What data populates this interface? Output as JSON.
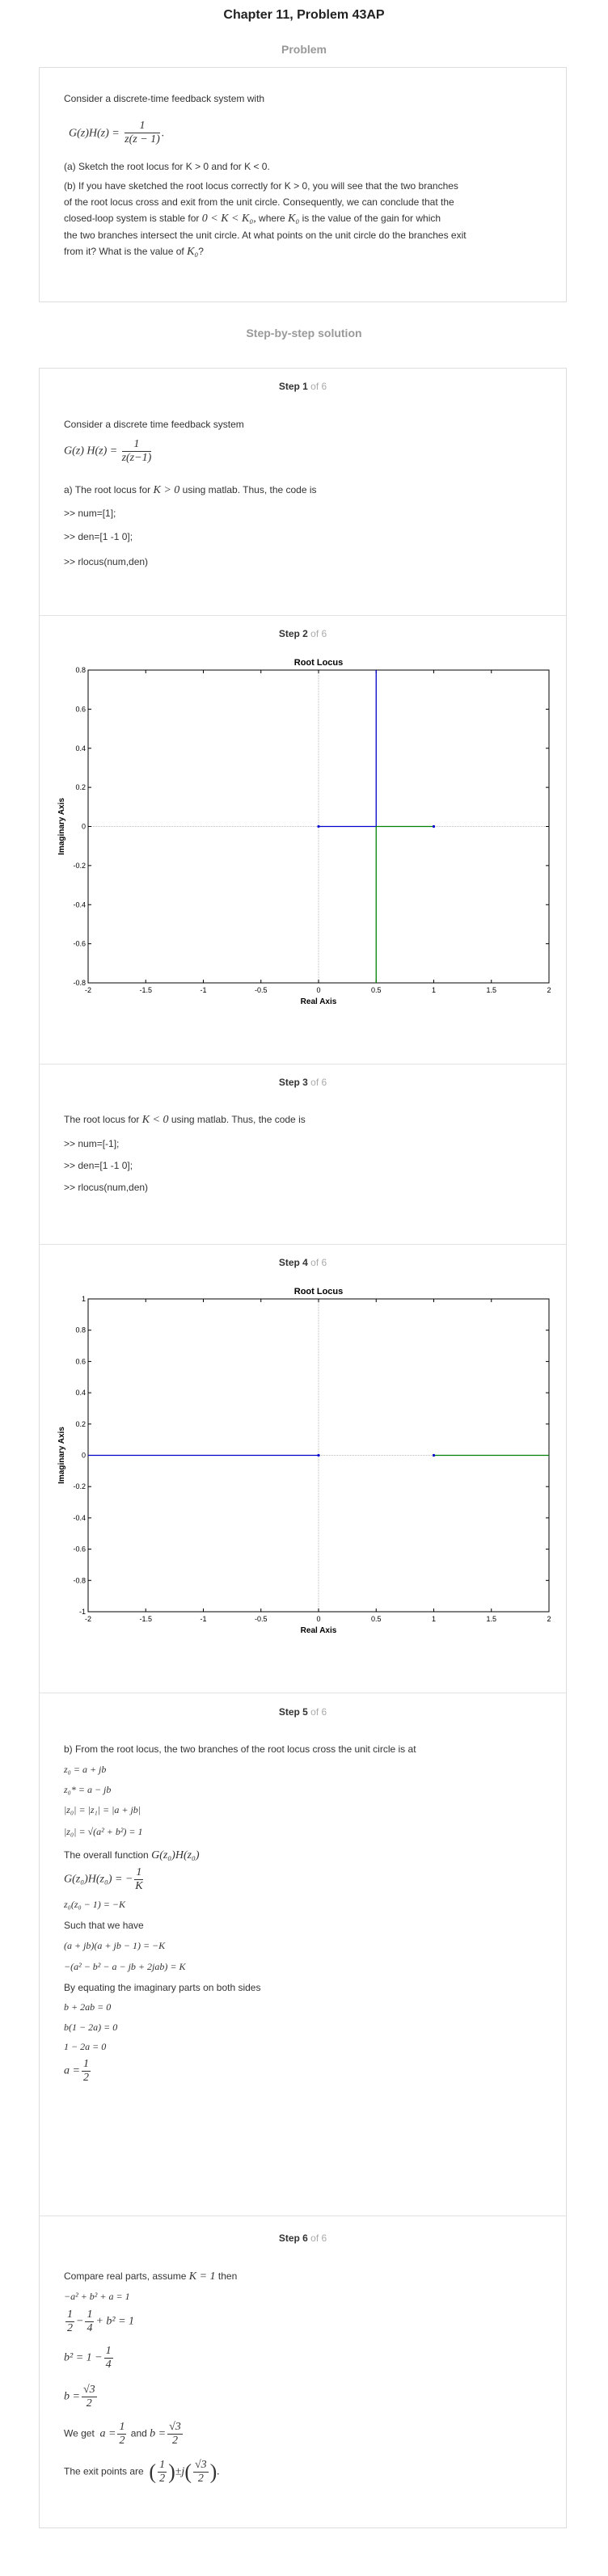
{
  "header": {
    "title": "Chapter 11, Problem 43AP",
    "problem_label": "Problem"
  },
  "problem": {
    "intro": "Consider a discrete-time feedback system with",
    "eq_lhs": "G(z)H(z) =",
    "eq_num": "1",
    "eq_den": "z(z − 1)",
    "part_a": "(a) Sketch the root locus for K > 0 and for K < 0.",
    "part_b_1": "(b) If you have sketched the root locus correctly for K > 0, you will see that the two branches",
    "part_b_2": "of the root locus cross and exit from the unit circle. Consequently, we can conclude that the",
    "part_b_3a": "closed-loop system is stable for",
    "part_b_3m": "0 < K < K₀,",
    "part_b_3b": "where",
    "part_b_3m2": "K₀",
    "part_b_3c": "is the value of the gain for which",
    "part_b_4": "the two branches intersect the unit circle. At what points on the unit circle do the branches exit",
    "part_b_5a": "from it? What is the value of",
    "part_b_5m": "K₀",
    "part_b_5b": "?"
  },
  "solution_title": "Step-by-step solution",
  "steps": [
    {
      "label": "Step 1",
      "of": "of 6"
    },
    {
      "label": "Step 2",
      "of": "of 6"
    },
    {
      "label": "Step 3",
      "of": "of 6"
    },
    {
      "label": "Step 4",
      "of": "of 6"
    },
    {
      "label": "Step 5",
      "of": "of 6"
    },
    {
      "label": "Step 6",
      "of": "of 6"
    }
  ],
  "step1": {
    "intro": "Consider a discrete time feedback system",
    "eq_lhs": "G(z) H(z) =",
    "eq_num": "1",
    "eq_den": "z(z−1)",
    "text_a": "a) The root locus for",
    "text_m": "K > 0",
    "text_b": "using matlab. Thus, the code is",
    "code": [
      ">> num=[1];",
      ">> den=[1 -1 0];",
      ">> rlocus(num,den)"
    ]
  },
  "step3": {
    "text_a": "The root locus for",
    "text_m": "K < 0",
    "text_b": "using matlab. Thus, the code is",
    "code": [
      ">> num=[-1];",
      ">> den=[1 -1 0];",
      ">> rlocus(num,den)"
    ]
  },
  "step5": {
    "intro": "b) From the root locus, the two branches of the root locus cross the unit circle is at",
    "m1": "z₀ = a + jb",
    "m2": "z₀* = a − jb",
    "m3": "|z₀| = |z₁| = |a + jb|",
    "m4": "|z₀| = √(a² + b²) = 1",
    "overall_a": "The overall function",
    "overall_m": "G(z₀)H(z₀)",
    "m5_lhs": "G(z₀)H(z₀) = −",
    "m5_num": "1",
    "m5_den": "K",
    "m6": "z₀(z₀ − 1) = −K",
    "such": "Such that we have",
    "m7": "(a + jb)(a + jb − 1) = −K",
    "m8": "−(a² − b² − a − jb + 2jab) = K",
    "equating": "By equating the imaginary parts on both sides",
    "m9": "b + 2ab = 0",
    "m10": "b(1 − 2a) = 0",
    "m11": "1 − 2a = 0",
    "m12_lhs": "a =",
    "m12_num": "1",
    "m12_den": "2"
  },
  "step6": {
    "compare_a": "Compare real parts, assume",
    "compare_m": "K = 1",
    "compare_b": "then",
    "m1": "−a² + b² + a = 1",
    "m2_a_num": "1",
    "m2_a_den": "2",
    "m2_b_num": "1",
    "m2_b_den": "4",
    "m2_rest": "+ b² = 1",
    "m3_lhs": "b² = 1 −",
    "m3_num": "1",
    "m3_den": "4",
    "m4_lhs": "b =",
    "m4_num": "√3",
    "m4_den": "2",
    "weget_a": "We get",
    "weget_m1": "a =",
    "weget_and": "and",
    "weget_m2": "b =",
    "exit_a": "The exit points are",
    "exit_pm": "±",
    "exit_j": "j"
  },
  "chart_data": [
    {
      "type": "line",
      "title": "Root Locus",
      "xlabel": "Real Axis",
      "ylabel": "Imaginary Axis",
      "xlim": [
        -2,
        2
      ],
      "ylim": [
        -0.8,
        0.8
      ],
      "xticks": [
        -2,
        -1.5,
        -1,
        -0.5,
        0,
        0.5,
        1,
        1.5,
        2
      ],
      "yticks": [
        -0.8,
        -0.6,
        -0.4,
        -0.2,
        0,
        0.2,
        0.4,
        0.6,
        0.8
      ],
      "series": [
        {
          "color": "#0000cc",
          "points": [
            [
              0,
              0
            ],
            [
              0.5,
              0
            ]
          ]
        },
        {
          "color": "#0000cc",
          "points": [
            [
              0.5,
              0
            ],
            [
              0.5,
              0.8
            ]
          ]
        },
        {
          "color": "#008000",
          "points": [
            [
              1,
              0
            ],
            [
              0.5,
              0
            ]
          ]
        },
        {
          "color": "#008000",
          "points": [
            [
              0.5,
              0
            ],
            [
              0.5,
              -0.8
            ]
          ]
        }
      ],
      "poles": [
        [
          0,
          0
        ],
        [
          1,
          0
        ]
      ]
    },
    {
      "type": "line",
      "title": "Root Locus",
      "xlabel": "Real Axis",
      "ylabel": "Imaginary Axis",
      "xlim": [
        -2,
        2
      ],
      "ylim": [
        -1,
        1
      ],
      "xticks": [
        -2,
        -1.5,
        -1,
        -0.5,
        0,
        0.5,
        1,
        1.5,
        2
      ],
      "yticks": [
        -1,
        -0.8,
        -0.6,
        -0.4,
        -0.2,
        0,
        0.2,
        0.4,
        0.6,
        0.8,
        1
      ],
      "series": [
        {
          "color": "#0000cc",
          "points": [
            [
              0,
              0
            ],
            [
              -2,
              0
            ]
          ]
        },
        {
          "color": "#008000",
          "points": [
            [
              1,
              0
            ],
            [
              2,
              0
            ]
          ]
        }
      ],
      "poles": [
        [
          0,
          0
        ],
        [
          1,
          0
        ]
      ]
    }
  ]
}
